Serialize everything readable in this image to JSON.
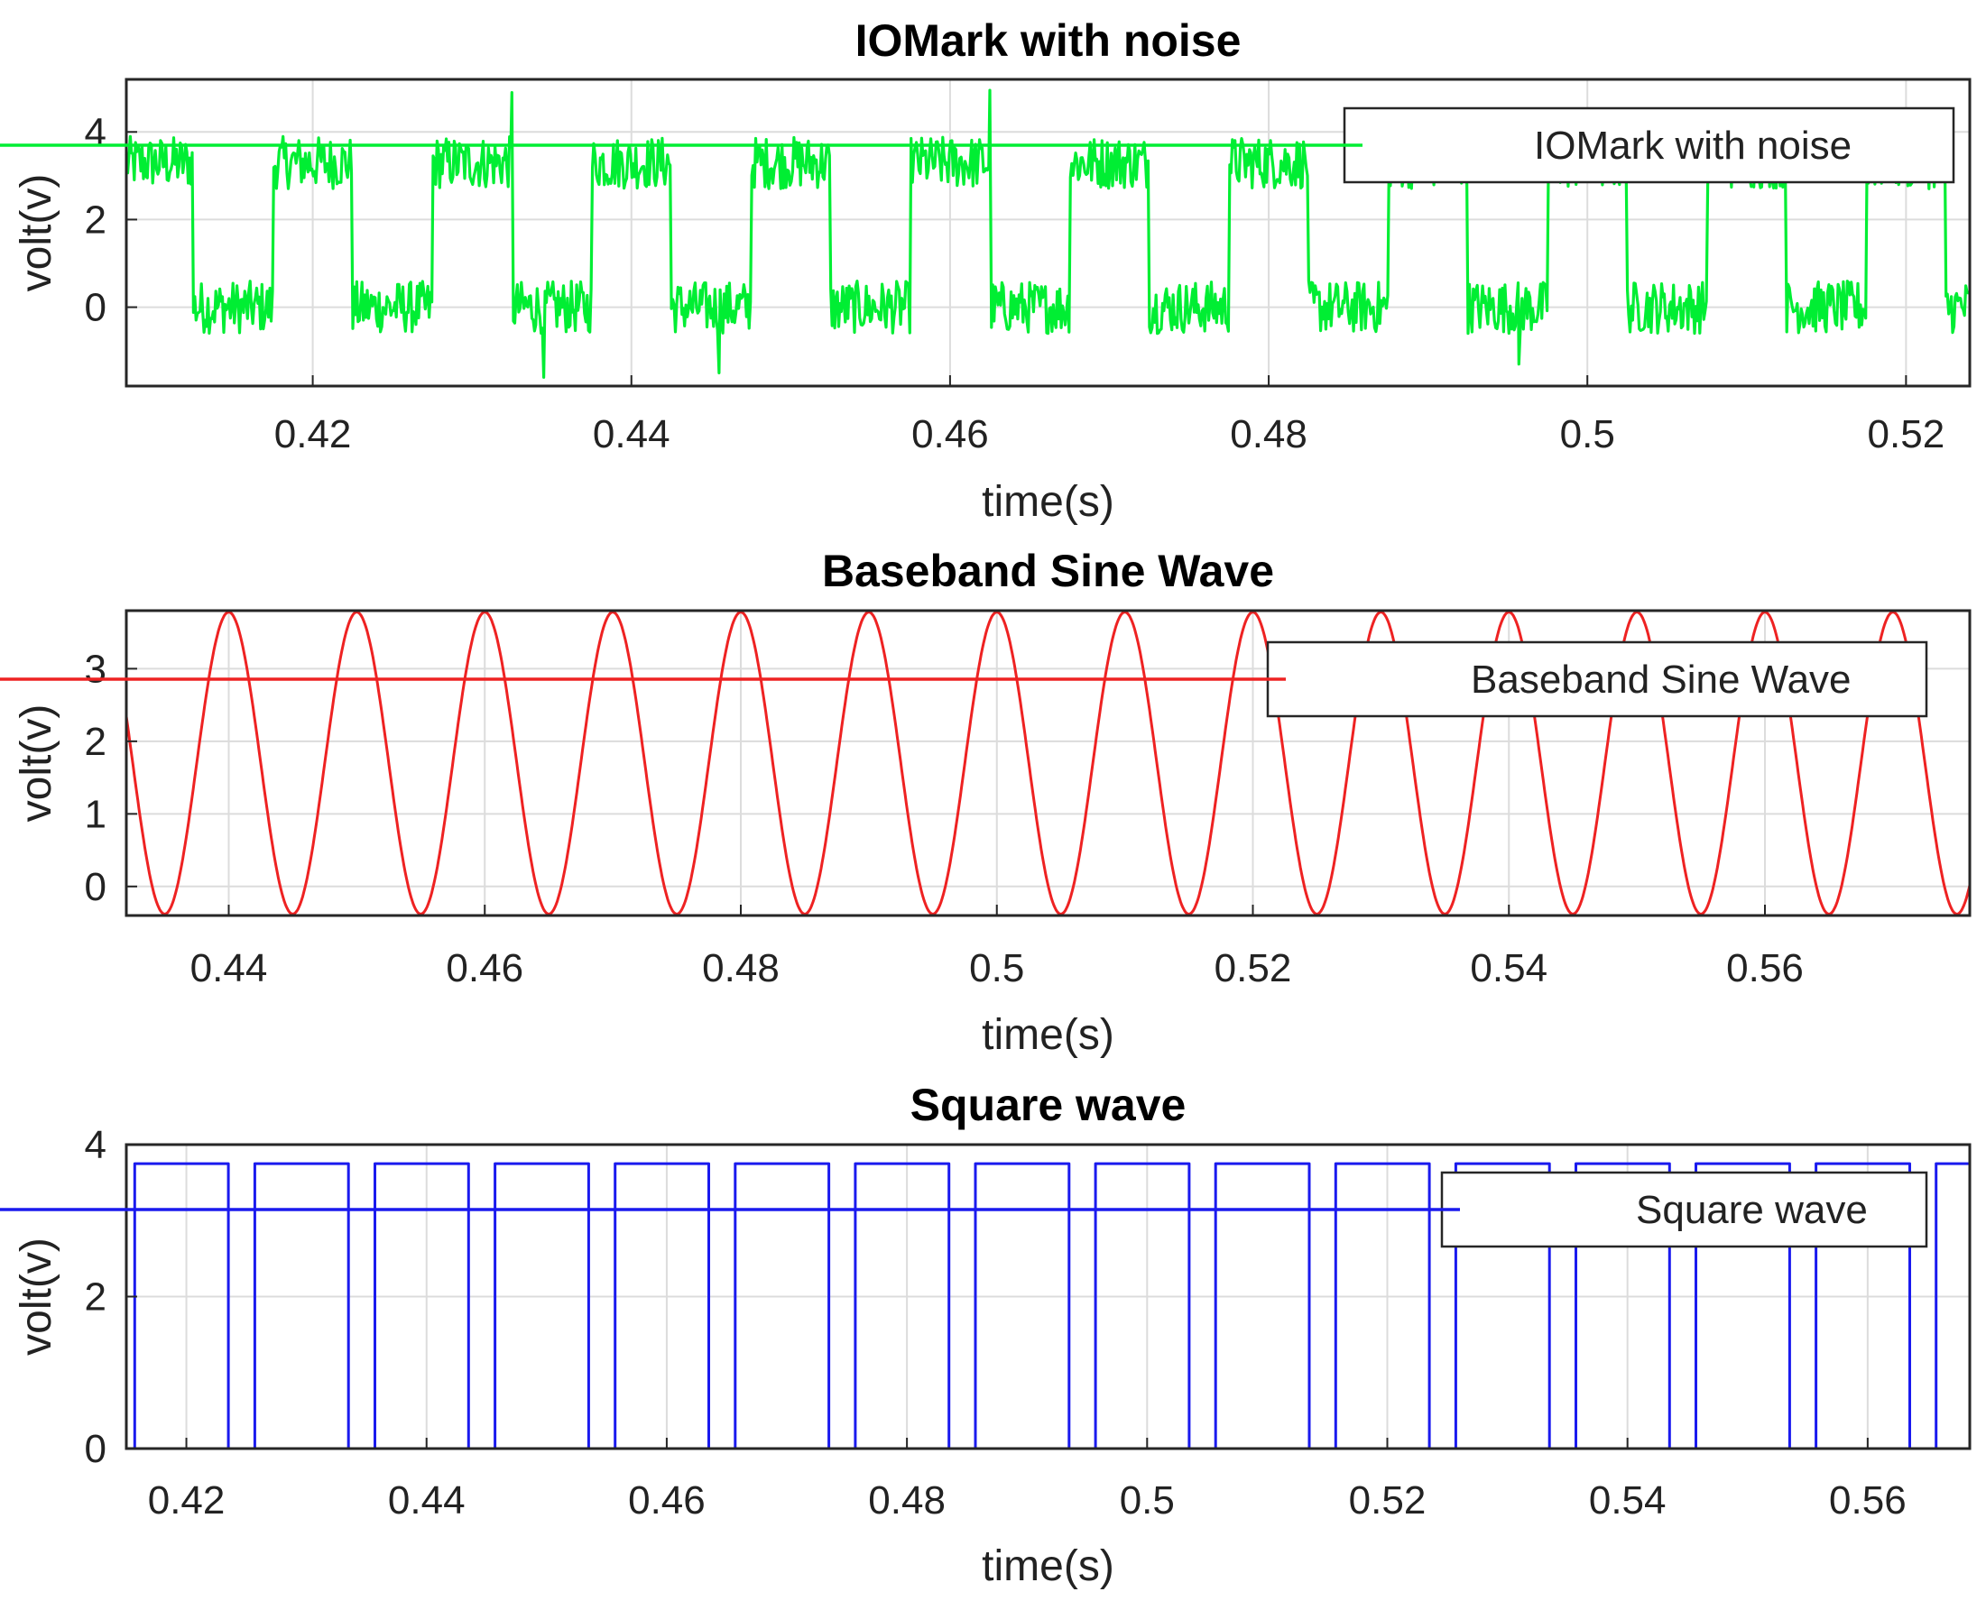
{
  "chart_data": [
    {
      "type": "line",
      "title": "IOMark with noise",
      "xlabel": "time(s)",
      "ylabel": "volt(v)",
      "xlim": [
        0.4083,
        0.524
      ],
      "ylim": [
        -1.8,
        5.2
      ],
      "xticks": [
        0.42,
        0.44,
        0.46,
        0.48,
        0.5,
        0.52
      ],
      "xtick_labels": [
        "0.42",
        "0.44",
        "0.46",
        "0.48",
        "0.5",
        "0.52"
      ],
      "yticks": [
        0,
        2,
        4
      ],
      "ytick_labels": [
        "0",
        "2",
        "4"
      ],
      "grid": true,
      "legend_position": "top-right",
      "series": [
        {
          "name": "IOMark with noise",
          "color": "#00ee33",
          "kind": "noisy-square",
          "period": 0.01,
          "high_start": 0.4075,
          "high_duration": 0.005,
          "high_level": 3.3,
          "low_level": 0.0,
          "noise_amplitude": 0.6,
          "noise_spikes": [
            {
              "x": 0.4325,
              "y": 4.9
            },
            {
              "x": 0.4345,
              "y": -1.6
            },
            {
              "x": 0.4455,
              "y": -1.5
            },
            {
              "x": 0.4625,
              "y": 4.95
            },
            {
              "x": 0.4957,
              "y": -1.3
            }
          ]
        }
      ]
    },
    {
      "type": "line",
      "title": "Baseband Sine Wave",
      "xlabel": "time(s)",
      "ylabel": "volt(v)",
      "xlim": [
        0.432,
        0.576
      ],
      "ylim": [
        -0.4,
        3.8
      ],
      "xticks": [
        0.44,
        0.46,
        0.48,
        0.5,
        0.52,
        0.54,
        0.56
      ],
      "xtick_labels": [
        "0.44",
        "0.46",
        "0.48",
        "0.5",
        "0.52",
        "0.54",
        "0.56"
      ],
      "yticks": [
        0,
        1,
        2,
        3
      ],
      "ytick_labels": [
        "0",
        "1",
        "2",
        "3"
      ],
      "grid": true,
      "legend_position": "top-right",
      "series": [
        {
          "name": "Baseband Sine Wave",
          "color": "#ee2222",
          "kind": "sine",
          "frequency_hz": 100,
          "offset": 1.7,
          "amplitude": 2.08,
          "peak_at": 0.44
        }
      ]
    },
    {
      "type": "line",
      "title": "Square wave",
      "xlabel": "time(s)",
      "ylabel": "volt(v)",
      "xlim": [
        0.415,
        0.5685
      ],
      "ylim": [
        0,
        4.0
      ],
      "xticks": [
        0.42,
        0.44,
        0.46,
        0.48,
        0.5,
        0.52,
        0.54,
        0.56
      ],
      "xtick_labels": [
        "0.42",
        "0.44",
        "0.46",
        "0.48",
        "0.5",
        "0.52",
        "0.54",
        "0.56"
      ],
      "yticks": [
        0,
        2,
        4
      ],
      "ytick_labels": [
        "0",
        "2",
        "4"
      ],
      "grid": true,
      "legend_position": "top-right",
      "series": [
        {
          "name": "Square wave",
          "color": "#1a1aee",
          "kind": "pwm",
          "high_level": 3.75,
          "low_level": 0,
          "first_rise": 0.4157,
          "first_fall": 0.4236,
          "period": 0.01,
          "high_duration": 0.0078
        }
      ]
    }
  ]
}
